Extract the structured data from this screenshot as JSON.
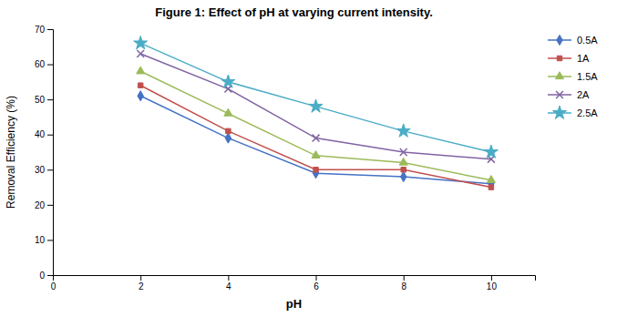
{
  "chart_data": {
    "type": "line",
    "title": "Figure 1: Effect of pH at varying current intensity.",
    "xlabel": "pH",
    "ylabel": "Removal Efficiency (%)",
    "x": [
      2,
      4,
      6,
      8,
      10
    ],
    "series": [
      {
        "name": "0.5A",
        "color": "#4472C4",
        "marker": "diamond",
        "values": [
          51,
          39,
          29,
          28,
          26
        ]
      },
      {
        "name": "1A",
        "color": "#C0504D",
        "marker": "square",
        "values": [
          54,
          41,
          30,
          30,
          25
        ]
      },
      {
        "name": "1.5A",
        "color": "#9BBB59",
        "marker": "triangle",
        "values": [
          58,
          46,
          34,
          32,
          27
        ]
      },
      {
        "name": "2A",
        "color": "#8064A2",
        "marker": "x",
        "values": [
          63,
          53,
          39,
          35,
          33
        ]
      },
      {
        "name": "2.5A",
        "color": "#4BACC6",
        "marker": "star",
        "values": [
          66,
          55,
          48,
          41,
          35
        ]
      }
    ],
    "xlim": [
      0,
      11
    ],
    "ylim": [
      0,
      70
    ],
    "xticks": [
      0,
      2,
      4,
      6,
      8,
      10
    ],
    "yticks": [
      0,
      10,
      20,
      30,
      40,
      50,
      60,
      70
    ],
    "grid": false,
    "legend": "right"
  }
}
